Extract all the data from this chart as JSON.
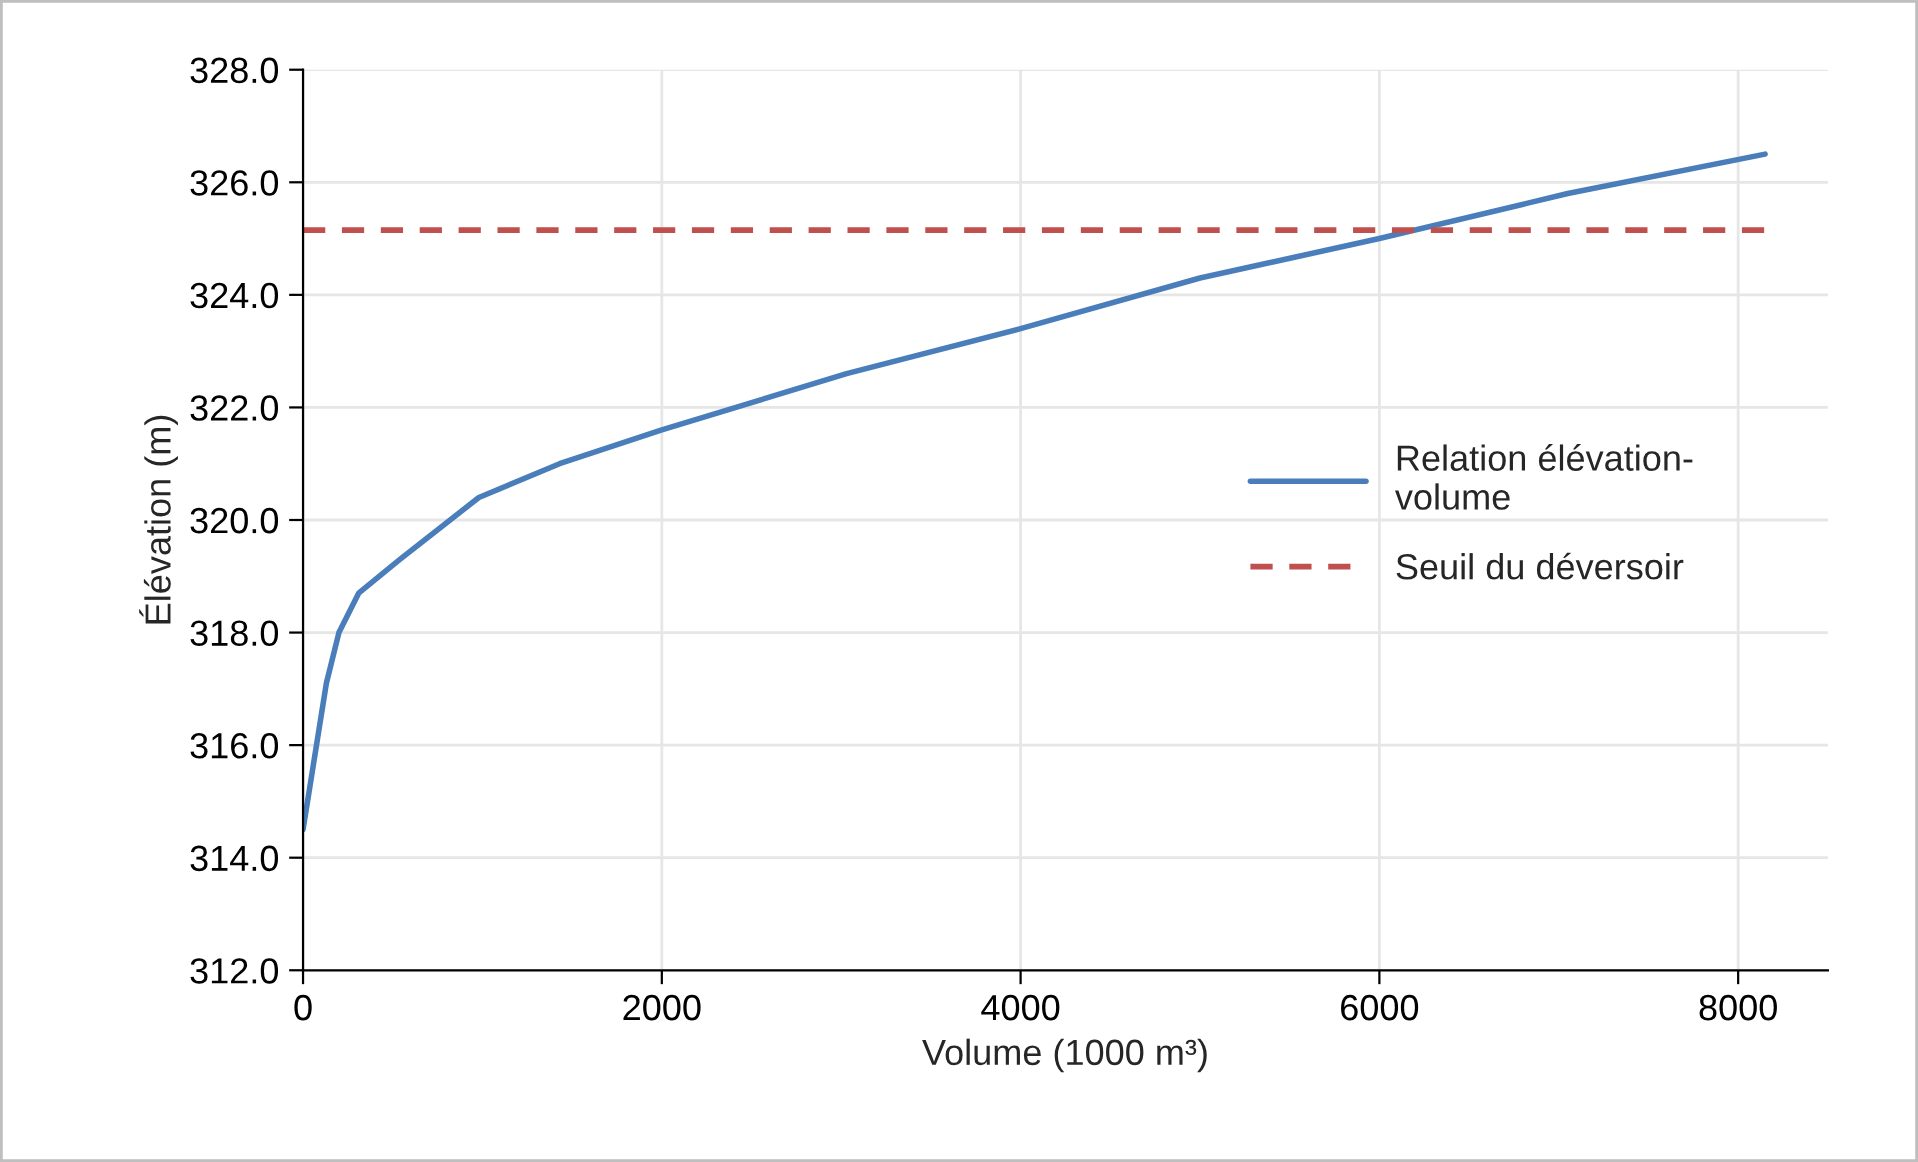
{
  "chart_data": {
    "type": "line",
    "xlabel": "Volume (1000 m³)",
    "ylabel": "Élévation (m)",
    "xlim": [
      0,
      8500
    ],
    "xticks": [
      0,
      2000,
      4000,
      6000,
      8000
    ],
    "ylim": [
      312,
      328
    ],
    "yticks": [
      {
        "value": 312,
        "label": "312.0"
      },
      {
        "value": 314,
        "label": "314.0"
      },
      {
        "value": 316,
        "label": "316.0"
      },
      {
        "value": 318,
        "label": "318.0"
      },
      {
        "value": 320,
        "label": "320.0"
      },
      {
        "value": 322,
        "label": "322.0"
      },
      {
        "value": 324,
        "label": "324.0"
      },
      {
        "value": 326,
        "label": "326.0"
      },
      {
        "value": 328,
        "label": "328.0"
      }
    ],
    "grid": true,
    "legend": "right",
    "marker": "none",
    "series": [
      {
        "name": "Relation élévation-volume",
        "color": "#4a7ebb",
        "line_style": "solid",
        "x": [
          0,
          130,
          200,
          310,
          540,
          980,
          1430,
          2000,
          3030,
          4000,
          5000,
          6000,
          7050,
          8150
        ],
        "values": [
          314.5,
          317.1,
          318.0,
          318.7,
          319.3,
          320.4,
          321.0,
          321.6,
          322.6,
          323.4,
          324.3,
          325.0,
          325.8,
          326.5
        ]
      },
      {
        "name": "Seuil du déversoir",
        "color": "#c0504d",
        "line_style": "dashed",
        "x": [
          0,
          8150
        ],
        "values": [
          325.15,
          325.15
        ]
      }
    ]
  }
}
